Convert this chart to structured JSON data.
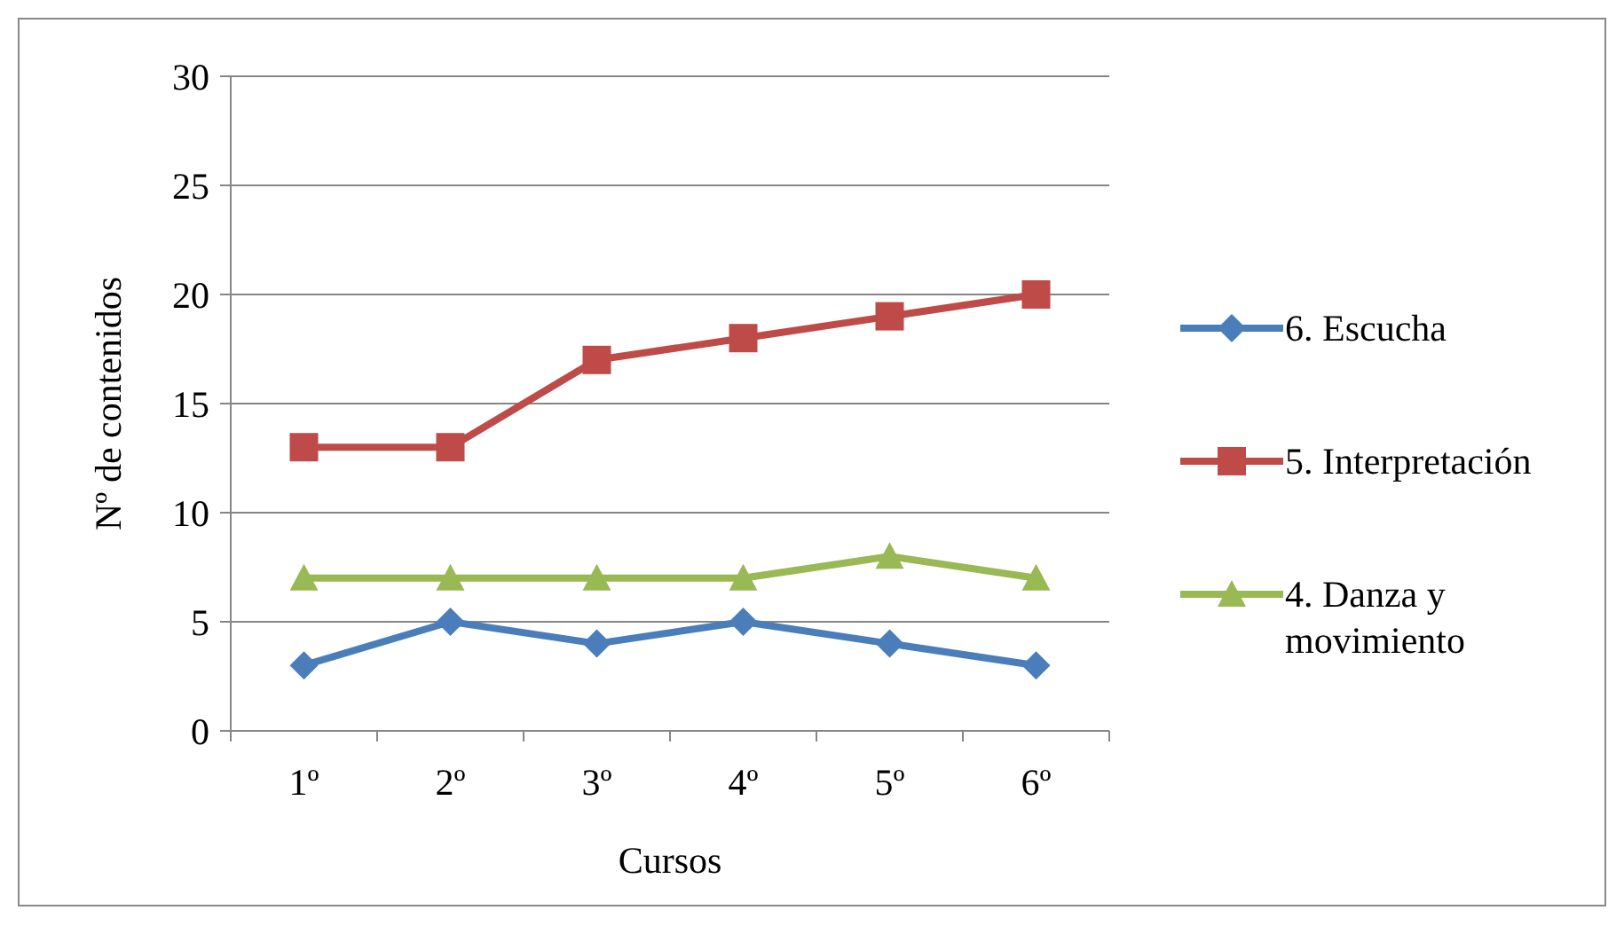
{
  "chart_data": {
    "type": "line",
    "xlabel": "Cursos",
    "ylabel": "Nº de contenidos",
    "categories": [
      "1º",
      "2º",
      "3º",
      "4º",
      "5º",
      "6º"
    ],
    "series": [
      {
        "name": "6. Escucha",
        "color": "#4a7ebb",
        "marker": "diamond",
        "values": [
          3,
          5,
          4,
          5,
          4,
          3
        ]
      },
      {
        "name": "5. Interpretación",
        "color": "#be4b48",
        "marker": "square",
        "values": [
          13,
          13,
          17,
          18,
          19,
          20
        ]
      },
      {
        "name": "4. Danza y movimiento",
        "color": "#98b954",
        "marker": "triangle",
        "values": [
          7,
          7,
          7,
          7,
          8,
          7
        ]
      }
    ],
    "ylim": [
      0,
      30
    ],
    "yticks": [
      0,
      5,
      10,
      15,
      20,
      25,
      30
    ],
    "grid": "y",
    "legend": "right",
    "line_style": "solid"
  }
}
